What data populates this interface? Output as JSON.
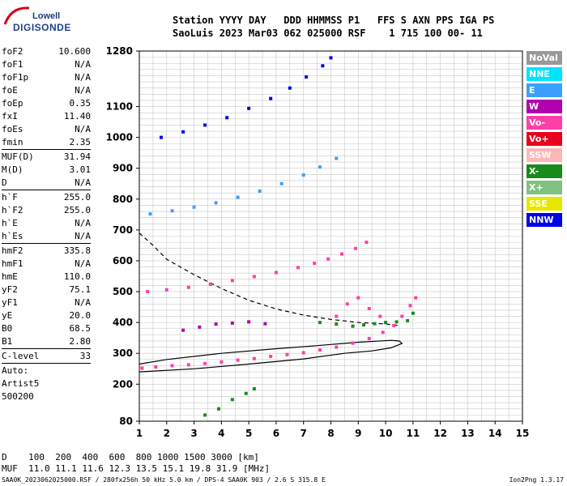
{
  "logo": {
    "top": "Lowell",
    "bottom": "DIGISONDE"
  },
  "header": {
    "labels": "Station YYYY DAY   DDD HHMMSS P1   FFS S AXN PPS IGA PS",
    "values": "SaoLuis 2023 Mar03 062 025000 RSF    1 715 100 00- 11"
  },
  "params": [
    {
      "name": "foF2",
      "value": "10.600"
    },
    {
      "name": "foF1",
      "value": "N/A"
    },
    {
      "name": "foF1p",
      "value": "N/A"
    },
    {
      "name": "foE",
      "value": "N/A"
    },
    {
      "name": "foEp",
      "value": "0.35"
    },
    {
      "name": "fxI",
      "value": "11.40"
    },
    {
      "name": "foEs",
      "value": "N/A"
    },
    {
      "name": "fmin",
      "value": "2.35"
    },
    {
      "name": "MUF(D)",
      "value": "31.94"
    },
    {
      "name": "M(D)",
      "value": "3.01"
    },
    {
      "name": "D",
      "value": "N/A"
    },
    {
      "name": "h`F",
      "value": "255.0"
    },
    {
      "name": "h`F2",
      "value": "255.0"
    },
    {
      "name": "h`E",
      "value": "N/A"
    },
    {
      "name": "h`Es",
      "value": "N/A"
    },
    {
      "name": "hmF2",
      "value": "335.8"
    },
    {
      "name": "hmF1",
      "value": "N/A"
    },
    {
      "name": "hmE",
      "value": "110.0"
    },
    {
      "name": "yF2",
      "value": "75.1"
    },
    {
      "name": "yF1",
      "value": "N/A"
    },
    {
      "name": "yE",
      "value": "20.0"
    },
    {
      "name": "B0",
      "value": "68.5"
    },
    {
      "name": "B1",
      "value": "2.80"
    }
  ],
  "c_level": {
    "name": "C-level",
    "value": "33"
  },
  "auto": [
    "Auto:",
    "Artist5",
    "500200"
  ],
  "legend": [
    {
      "label": "NoVal",
      "color": "#999999"
    },
    {
      "label": "NNE",
      "color": "#00e5ff"
    },
    {
      "label": "E",
      "color": "#3aa0ff"
    },
    {
      "label": "W",
      "color": "#b000b0"
    },
    {
      "label": "Vo-",
      "color": "#ff3fa8"
    },
    {
      "label": "Vo+",
      "color": "#e8001c"
    },
    {
      "label": "SSW",
      "color": "#ffb6b6"
    },
    {
      "label": "X-",
      "color": "#1a8a1a"
    },
    {
      "label": "X+",
      "color": "#7fc27f"
    },
    {
      "label": "SSE",
      "color": "#e6e600"
    },
    {
      "label": "NNW",
      "color": "#0000ee"
    }
  ],
  "muf_table": {
    "row1": "D    100  200  400  600  800 1000 1500 3000 [km]",
    "row2": "MUF  11.0 11.1 11.6 12.3 13.5 15.1 19.8 31.9 [MHz]"
  },
  "footer": "SAA0K_2023062025000.RSF / 280fx256h 50 kHz 5.0 km / DPS-4 SAA0K 903 / 2.6 S 315.8 E",
  "version": "Ion2Png 1.3.17",
  "chart_data": {
    "type": "scatter",
    "xlim": [
      1,
      15
    ],
    "ylim": [
      80,
      1280
    ],
    "x_ticks": [
      1,
      2,
      3,
      4,
      5,
      6,
      7,
      8,
      9,
      10,
      11,
      12,
      13,
      14,
      15
    ],
    "y_ticks": [
      80,
      200,
      300,
      400,
      500,
      600,
      700,
      800,
      900,
      1000,
      1100,
      1280
    ],
    "grid": true,
    "series": [
      {
        "color": "#ff3fa8",
        "points": [
          [
            1.1,
            252
          ],
          [
            1.6,
            256
          ],
          [
            2.2,
            260
          ],
          [
            2.8,
            263
          ],
          [
            3.4,
            267
          ],
          [
            4.0,
            272
          ],
          [
            4.6,
            278
          ],
          [
            5.2,
            283
          ],
          [
            5.8,
            290
          ],
          [
            6.4,
            296
          ],
          [
            7.0,
            302
          ],
          [
            7.6,
            311
          ],
          [
            8.2,
            320
          ],
          [
            8.8,
            333
          ],
          [
            9.4,
            348
          ],
          [
            9.9,
            368
          ],
          [
            10.3,
            390
          ],
          [
            10.6,
            420
          ],
          [
            10.9,
            455
          ],
          [
            11.1,
            480
          ]
        ]
      },
      {
        "color": "#ff3fa8",
        "points": [
          [
            1.3,
            500
          ],
          [
            2.0,
            506
          ],
          [
            2.8,
            514
          ],
          [
            3.6,
            524
          ],
          [
            4.4,
            536
          ],
          [
            5.2,
            549
          ],
          [
            6.0,
            562
          ],
          [
            6.8,
            578
          ],
          [
            7.4,
            592
          ],
          [
            7.9,
            606
          ],
          [
            8.4,
            622
          ],
          [
            8.9,
            640
          ],
          [
            9.3,
            660
          ]
        ]
      },
      {
        "color": "#3aa0ff",
        "points": [
          [
            1.4,
            752
          ],
          [
            2.2,
            762
          ],
          [
            3.0,
            774
          ],
          [
            3.8,
            788
          ],
          [
            4.6,
            806
          ],
          [
            5.4,
            826
          ],
          [
            6.2,
            850
          ],
          [
            7.0,
            878
          ],
          [
            7.6,
            904
          ],
          [
            8.2,
            932
          ]
        ]
      },
      {
        "color": "#0000ee",
        "points": [
          [
            1.8,
            1000
          ],
          [
            2.6,
            1018
          ],
          [
            3.4,
            1040
          ],
          [
            4.2,
            1064
          ],
          [
            5.0,
            1094
          ],
          [
            5.8,
            1126
          ],
          [
            6.5,
            1160
          ],
          [
            7.1,
            1196
          ],
          [
            7.7,
            1232
          ],
          [
            8.0,
            1258
          ]
        ]
      },
      {
        "color": "#1a8a1a",
        "points": [
          [
            7.6,
            400
          ],
          [
            8.2,
            395
          ],
          [
            8.8,
            388
          ],
          [
            9.2,
            392
          ],
          [
            9.6,
            396
          ],
          [
            10.0,
            400
          ],
          [
            10.4,
            402
          ],
          [
            10.8,
            406
          ],
          [
            11.0,
            430
          ]
        ]
      },
      {
        "color": "#b000b0",
        "points": [
          [
            2.6,
            375
          ],
          [
            3.2,
            385
          ],
          [
            3.8,
            395
          ],
          [
            4.4,
            398
          ],
          [
            5.0,
            402
          ],
          [
            5.6,
            396
          ]
        ]
      },
      {
        "color": "#1a8a1a",
        "points": [
          [
            3.4,
            100
          ],
          [
            3.9,
            120
          ],
          [
            4.4,
            150
          ],
          [
            4.9,
            170
          ],
          [
            5.2,
            185
          ]
        ]
      },
      {
        "color": "#ff3fa8",
        "points": [
          [
            8.2,
            420
          ],
          [
            8.6,
            460
          ],
          [
            9.0,
            480
          ],
          [
            9.4,
            445
          ],
          [
            9.8,
            420
          ]
        ]
      }
    ],
    "profile_lines": [
      {
        "style": "solid",
        "points": [
          [
            1.0,
            240
          ],
          [
            3.0,
            250
          ],
          [
            5.0,
            265
          ],
          [
            7.0,
            282
          ],
          [
            8.5,
            300
          ],
          [
            9.5,
            308
          ],
          [
            10.2,
            318
          ],
          [
            10.6,
            332
          ],
          [
            10.5,
            340
          ],
          [
            10.2,
            342
          ],
          [
            9.0,
            336
          ],
          [
            7.5,
            325
          ],
          [
            6.0,
            315
          ],
          [
            4.0,
            300
          ],
          [
            2.0,
            280
          ],
          [
            1.0,
            265
          ]
        ]
      },
      {
        "style": "dashed",
        "points": [
          [
            1.0,
            690
          ],
          [
            1.5,
            650
          ],
          [
            2.0,
            605
          ],
          [
            3.0,
            555
          ],
          [
            4.0,
            510
          ],
          [
            5.0,
            472
          ],
          [
            6.0,
            444
          ],
          [
            7.0,
            424
          ],
          [
            8.0,
            410
          ],
          [
            9.0,
            400
          ],
          [
            10.0,
            395
          ],
          [
            10.5,
            390
          ]
        ]
      }
    ]
  }
}
